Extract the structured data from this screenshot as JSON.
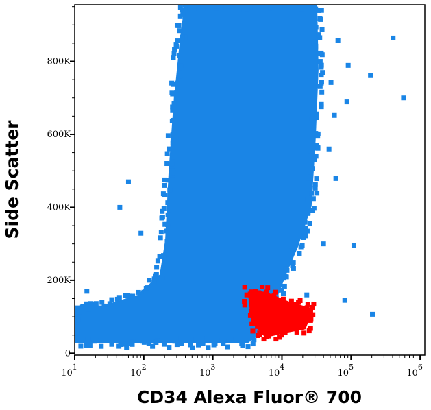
{
  "chart_data": {
    "type": "scatter",
    "xlabel": "CD34 Alexa Fluor® 700",
    "ylabel": "Side Scatter",
    "x_scale": "log",
    "xlim": [
      10,
      1170000
    ],
    "ylim": [
      -5000,
      955000
    ],
    "x_ticks": [
      {
        "base": "10",
        "exp": "1",
        "value": 10
      },
      {
        "base": "10",
        "exp": "2",
        "value": 100
      },
      {
        "base": "10",
        "exp": "3",
        "value": 1000
      },
      {
        "base": "10",
        "exp": "4",
        "value": 10000
      },
      {
        "base": "10",
        "exp": "5",
        "value": 100000
      },
      {
        "base": "10",
        "exp": "6",
        "value": 1000000
      }
    ],
    "y_ticks": [
      {
        "label": "0",
        "value": 0
      },
      {
        "label": "200K",
        "value": 200000
      },
      {
        "label": "400K",
        "value": 400000
      },
      {
        "label": "600K",
        "value": 600000
      },
      {
        "label": "800K",
        "value": 800000
      }
    ],
    "grid": false,
    "populations": [
      {
        "color": "#1a85e6",
        "region_outline": [
          [
            10.2,
            28000
          ],
          [
            10.2,
            131000
          ],
          [
            25.7,
            131000
          ],
          [
            81,
            160000
          ],
          [
            170,
            216000
          ],
          [
            204,
            310000
          ],
          [
            229,
            498000
          ],
          [
            269,
            685000
          ],
          [
            339,
            873000
          ],
          [
            389,
            954000
          ],
          [
            32400,
            954000
          ],
          [
            33900,
            779000
          ],
          [
            30900,
            592000
          ],
          [
            26900,
            404000
          ],
          [
            17000,
            291000
          ],
          [
            11500,
            216000
          ],
          [
            8100,
            141000
          ],
          [
            5750,
            66000
          ],
          [
            3240,
            28000
          ]
        ],
        "outliers": [
          [
            407000,
            864000
          ],
          [
            575000,
            700000
          ],
          [
            191000,
            761000
          ],
          [
            64600,
            858000
          ],
          [
            87100,
            689000
          ],
          [
            110000,
            295000
          ],
          [
            204000,
            107000
          ],
          [
            81300,
            145000
          ],
          [
            91000,
            789000
          ],
          [
            51300,
            742000
          ],
          [
            57500,
            652000
          ],
          [
            60300,
            479000
          ],
          [
            22900,
            160000
          ],
          [
            91,
            329000
          ],
          [
            15,
            170000
          ],
          [
            45,
            400000
          ],
          [
            60,
            470000
          ],
          [
            120,
            200000
          ],
          [
            48000,
            560000
          ],
          [
            40000,
            300000
          ]
        ]
      },
      {
        "color": "#ff0000",
        "region_outline": [
          [
            3200,
            169000
          ],
          [
            5750,
            169000
          ],
          [
            12900,
            141000
          ],
          [
            28800,
            122000
          ],
          [
            21900,
            66000
          ],
          [
            11500,
            56000
          ],
          [
            5750,
            43000
          ],
          [
            3600,
            85000
          ]
        ],
        "outliers": [
          [
            4800,
            52000
          ],
          [
            26000,
            90000
          ],
          [
            3100,
            160000
          ]
        ]
      }
    ]
  }
}
